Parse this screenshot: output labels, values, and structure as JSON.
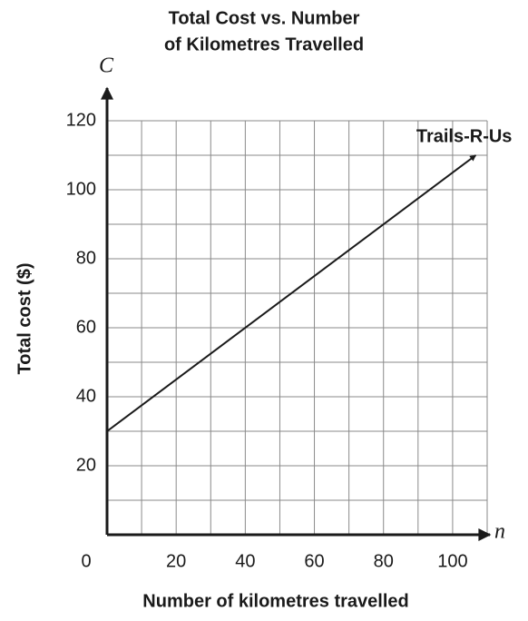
{
  "chart_data": {
    "type": "line",
    "title": [
      "Total Cost vs. Number",
      "of Kilometres Travelled"
    ],
    "x_label": "Number of kilometres travelled",
    "y_label": "Total cost ($)",
    "x_axis_symbol": "n",
    "y_axis_symbol": "C",
    "xlim": [
      0,
      110
    ],
    "ylim": [
      0,
      120
    ],
    "xticks": [
      0,
      20,
      40,
      60,
      80,
      100
    ],
    "yticks": [
      20,
      40,
      60,
      80,
      100,
      120
    ],
    "xgrid": [
      0,
      10,
      20,
      30,
      40,
      50,
      60,
      70,
      80,
      90,
      100,
      110
    ],
    "ygrid": [
      0,
      10,
      20,
      30,
      40,
      50,
      60,
      70,
      80,
      90,
      100,
      110,
      120
    ],
    "grid": true,
    "series": [
      {
        "name": "Trails-R-Us",
        "color": "#1a1a1a",
        "x": [
          0,
          106.7
        ],
        "values": [
          30,
          110
        ]
      }
    ]
  }
}
